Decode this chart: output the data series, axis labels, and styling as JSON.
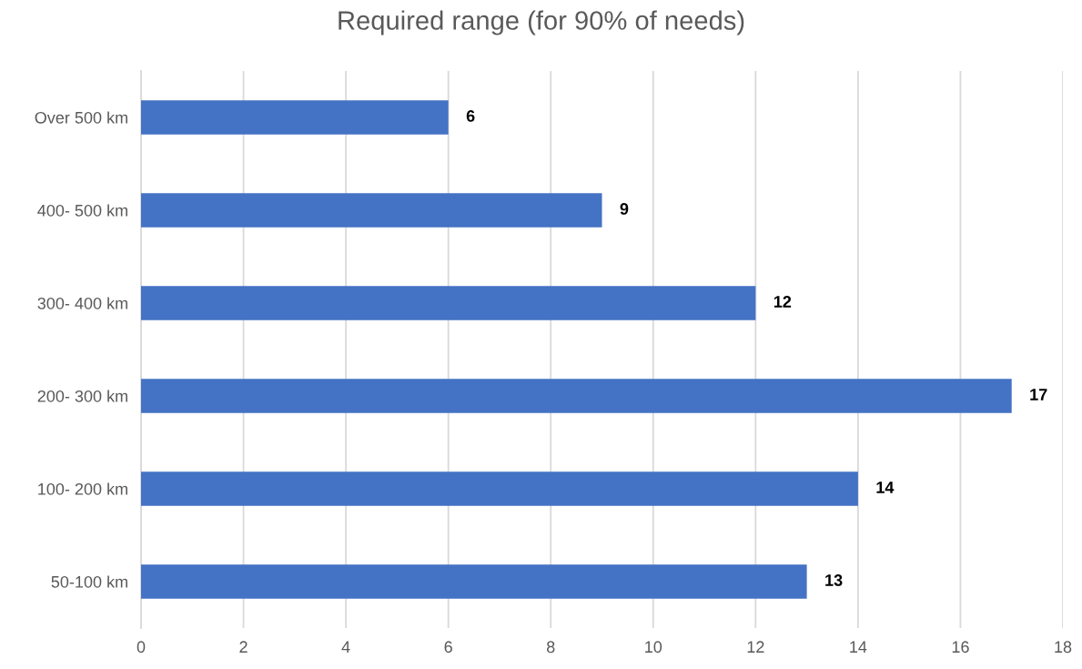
{
  "chart_data": {
    "type": "bar",
    "orientation": "horizontal",
    "title": "Required range (for 90% of needs)",
    "categories": [
      "Over 500 km",
      "400- 500 km",
      "300- 400 km",
      "200- 300 km",
      "100- 200 km",
      "50-100 km"
    ],
    "values": [
      6,
      9,
      12,
      17,
      14,
      13
    ],
    "color": "#4472c4",
    "xlim": [
      0,
      18
    ],
    "xticks": [
      0,
      2,
      4,
      6,
      8,
      10,
      12,
      14,
      16,
      18
    ],
    "grid": "x",
    "data_labels": true
  }
}
